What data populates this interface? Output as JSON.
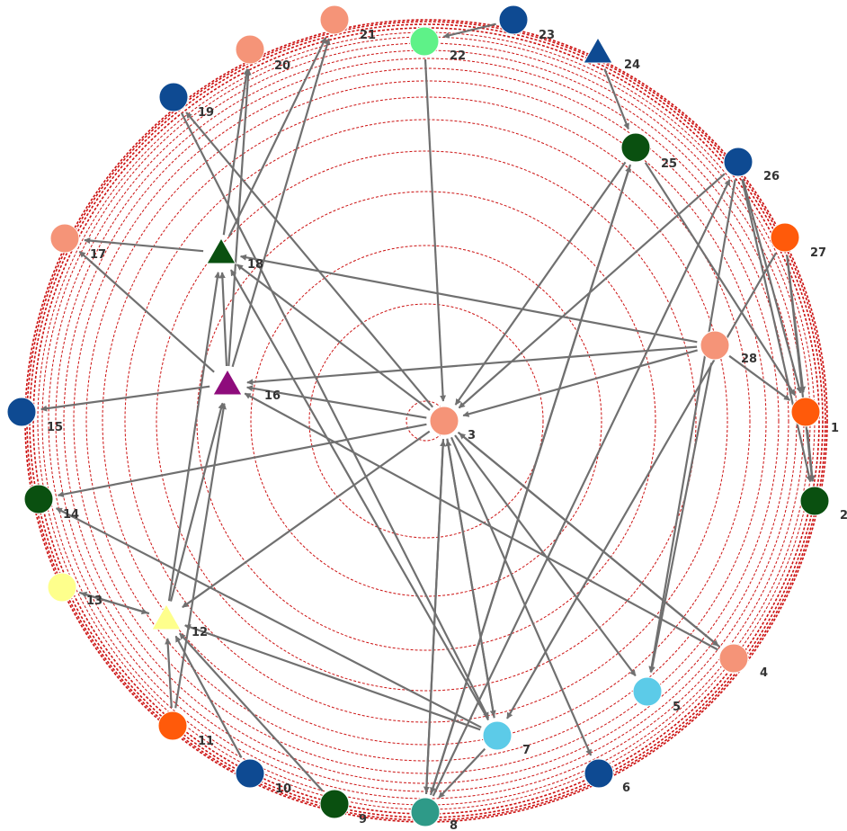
{
  "graph": {
    "colors": {
      "ring": "#cc1111",
      "edge": "#707070",
      "blue": "#0e4a92",
      "orange": "#ff5a0a",
      "salmon": "#f59478",
      "darkgreen": "#0a5010",
      "lightgreen": "#5ef288",
      "cyan": "#5ccbe8",
      "yellow": "#feff8c",
      "teal": "#2e9a88",
      "purple": "#8e0c7c"
    },
    "nodes": [
      {
        "id": "1",
        "label": "1",
        "color": "orange",
        "shape": "circle"
      },
      {
        "id": "2",
        "label": "2",
        "color": "darkgreen",
        "shape": "circle"
      },
      {
        "id": "3",
        "label": "3",
        "color": "salmon",
        "shape": "circle"
      },
      {
        "id": "4",
        "label": "4",
        "color": "salmon",
        "shape": "circle"
      },
      {
        "id": "5",
        "label": "5",
        "color": "cyan",
        "shape": "circle"
      },
      {
        "id": "6",
        "label": "6",
        "color": "blue",
        "shape": "circle"
      },
      {
        "id": "7",
        "label": "7",
        "color": "cyan",
        "shape": "circle"
      },
      {
        "id": "8",
        "label": "8",
        "color": "teal",
        "shape": "circle"
      },
      {
        "id": "9",
        "label": "9",
        "color": "darkgreen",
        "shape": "circle"
      },
      {
        "id": "10",
        "label": "10",
        "color": "blue",
        "shape": "circle"
      },
      {
        "id": "11",
        "label": "11",
        "color": "orange",
        "shape": "circle"
      },
      {
        "id": "12",
        "label": "12",
        "color": "yellow",
        "shape": "triangle"
      },
      {
        "id": "13",
        "label": "13",
        "color": "yellow",
        "shape": "circle"
      },
      {
        "id": "14",
        "label": "14",
        "color": "darkgreen",
        "shape": "circle"
      },
      {
        "id": "15",
        "label": "15",
        "color": "blue",
        "shape": "circle"
      },
      {
        "id": "16",
        "label": "16",
        "color": "purple",
        "shape": "triangle"
      },
      {
        "id": "17",
        "label": "17",
        "color": "salmon",
        "shape": "circle"
      },
      {
        "id": "18",
        "label": "18",
        "color": "darkgreen",
        "shape": "triangle"
      },
      {
        "id": "19",
        "label": "19",
        "color": "blue",
        "shape": "circle"
      },
      {
        "id": "20",
        "label": "20",
        "color": "salmon",
        "shape": "circle"
      },
      {
        "id": "21",
        "label": "21",
        "color": "salmon",
        "shape": "circle"
      },
      {
        "id": "22",
        "label": "22",
        "color": "lightgreen",
        "shape": "circle"
      },
      {
        "id": "23",
        "label": "23",
        "color": "blue",
        "shape": "circle"
      },
      {
        "id": "24",
        "label": "24",
        "color": "blue",
        "shape": "triangle"
      },
      {
        "id": "25",
        "label": "25",
        "color": "darkgreen",
        "shape": "circle"
      },
      {
        "id": "26",
        "label": "26",
        "color": "blue",
        "shape": "circle"
      },
      {
        "id": "27",
        "label": "27",
        "color": "orange",
        "shape": "circle"
      },
      {
        "id": "28",
        "label": "28",
        "color": "salmon",
        "shape": "circle"
      }
    ],
    "edges": [
      [
        "24",
        "25"
      ],
      [
        "23",
        "22"
      ],
      [
        "22",
        "3"
      ],
      [
        "26",
        "3"
      ],
      [
        "26",
        "1"
      ],
      [
        "26",
        "2"
      ],
      [
        "26",
        "5"
      ],
      [
        "25",
        "3"
      ],
      [
        "25",
        "8"
      ],
      [
        "25",
        "1"
      ],
      [
        "27",
        "2"
      ],
      [
        "27",
        "1"
      ],
      [
        "27",
        "7"
      ],
      [
        "28",
        "18"
      ],
      [
        "28",
        "16"
      ],
      [
        "28",
        "3"
      ],
      [
        "28",
        "5"
      ],
      [
        "28",
        "1"
      ],
      [
        "1",
        "2"
      ],
      [
        "3",
        "16"
      ],
      [
        "3",
        "18"
      ],
      [
        "3",
        "19"
      ],
      [
        "3",
        "14"
      ],
      [
        "3",
        "12"
      ],
      [
        "3",
        "4"
      ],
      [
        "3",
        "5"
      ],
      [
        "3",
        "6"
      ],
      [
        "3",
        "7"
      ],
      [
        "3",
        "8"
      ],
      [
        "4",
        "16"
      ],
      [
        "4",
        "3"
      ],
      [
        "7",
        "8"
      ],
      [
        "7",
        "18"
      ],
      [
        "7",
        "12"
      ],
      [
        "7",
        "14"
      ],
      [
        "7",
        "3"
      ],
      [
        "8",
        "25"
      ],
      [
        "8",
        "26"
      ],
      [
        "8",
        "3"
      ],
      [
        "9",
        "12"
      ],
      [
        "10",
        "12"
      ],
      [
        "11",
        "12"
      ],
      [
        "11",
        "16"
      ],
      [
        "12",
        "13"
      ],
      [
        "12",
        "16"
      ],
      [
        "12",
        "18"
      ],
      [
        "16",
        "15"
      ],
      [
        "16",
        "17"
      ],
      [
        "16",
        "18"
      ],
      [
        "16",
        "20"
      ],
      [
        "16",
        "21"
      ],
      [
        "18",
        "17"
      ],
      [
        "18",
        "20"
      ],
      [
        "18",
        "21"
      ],
      [
        "19",
        "7"
      ],
      [
        "13",
        "12"
      ]
    ]
  }
}
